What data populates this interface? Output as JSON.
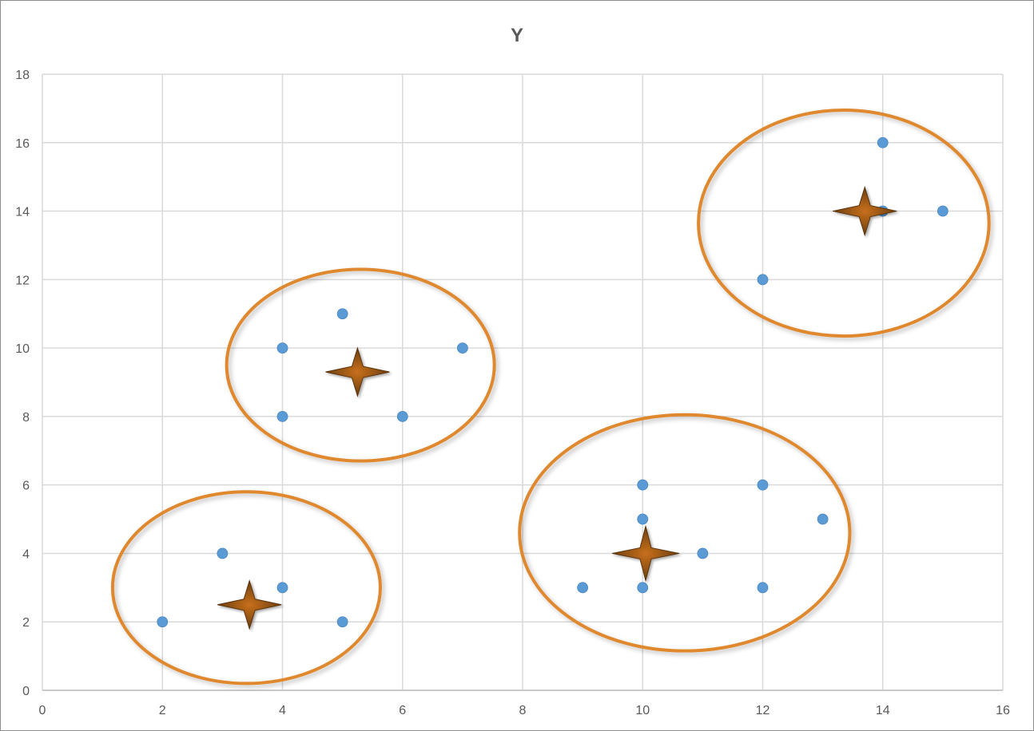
{
  "chart_data": {
    "type": "scatter",
    "title": "Y",
    "xlabel": "",
    "ylabel": "",
    "xlim": [
      0,
      16
    ],
    "ylim": [
      0,
      18
    ],
    "x_ticks": [
      "0",
      "2",
      "4",
      "6",
      "8",
      "10",
      "12",
      "14",
      "16"
    ],
    "y_ticks": [
      "0",
      "2",
      "4",
      "6",
      "8",
      "10",
      "12",
      "14",
      "16",
      "18"
    ],
    "grid": true,
    "legend": "none",
    "series": [
      {
        "marker": "circle",
        "color": "#5b9bd5",
        "points": [
          {
            "x": 2,
            "y": 2
          },
          {
            "x": 3,
            "y": 4
          },
          {
            "x": 4,
            "y": 3
          },
          {
            "x": 5,
            "y": 2
          },
          {
            "x": 4,
            "y": 10
          },
          {
            "x": 4,
            "y": 8
          },
          {
            "x": 5,
            "y": 11
          },
          {
            "x": 6,
            "y": 8
          },
          {
            "x": 7,
            "y": 10
          },
          {
            "x": 9,
            "y": 3
          },
          {
            "x": 10,
            "y": 3
          },
          {
            "x": 10,
            "y": 5
          },
          {
            "x": 10,
            "y": 6
          },
          {
            "x": 11,
            "y": 4
          },
          {
            "x": 12,
            "y": 3
          },
          {
            "x": 12,
            "y": 6
          },
          {
            "x": 13,
            "y": 5
          },
          {
            "x": 12,
            "y": 12
          },
          {
            "x": 14,
            "y": 14
          },
          {
            "x": 14,
            "y": 16
          },
          {
            "x": 15,
            "y": 14
          }
        ]
      },
      {
        "marker": "star4",
        "color": "#7b4a12",
        "points": [
          {
            "x": 3.45,
            "y": 2.5
          },
          {
            "x": 5.25,
            "y": 9.3
          },
          {
            "x": 10.05,
            "y": 4.0
          },
          {
            "x": 13.7,
            "y": 14.0
          }
        ]
      }
    ],
    "annotations": [
      {
        "shape": "ellipse",
        "color": "#e0882d",
        "cx": 3.4,
        "cy": 3.0,
        "rx": 2.23,
        "ry": 2.8
      },
      {
        "shape": "ellipse",
        "color": "#e0882d",
        "cx": 5.3,
        "cy": 9.5,
        "rx": 2.23,
        "ry": 2.8
      },
      {
        "shape": "ellipse",
        "color": "#e0882d",
        "cx": 10.7,
        "cy": 4.6,
        "rx": 2.75,
        "ry": 3.45
      },
      {
        "shape": "ellipse",
        "color": "#e0882d",
        "cx": 13.35,
        "cy": 13.65,
        "rx": 2.42,
        "ry": 3.3
      }
    ]
  }
}
